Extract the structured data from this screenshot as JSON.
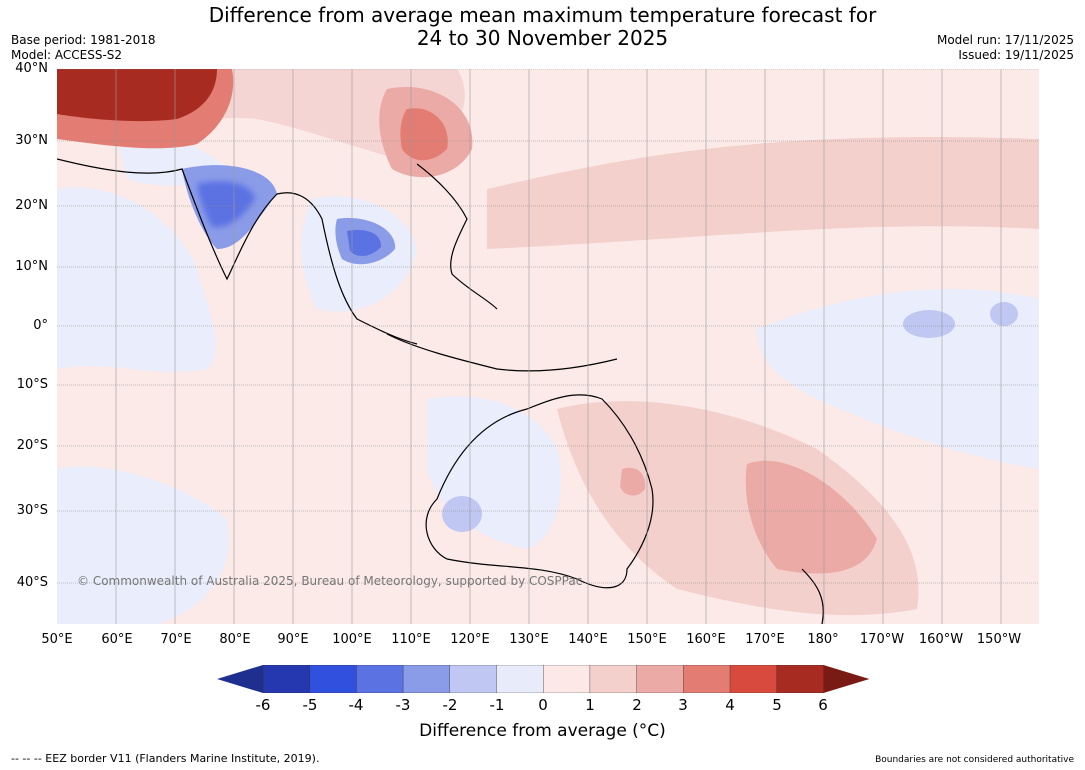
{
  "header": {
    "title_line1": "Difference from average mean maximum temperature forecast for",
    "title_line2": "24 to 30 November 2025",
    "base_period": "Base period: 1981-2018",
    "model": "Model: ACCESS-S2",
    "model_run": "Model run: 17/11/2025",
    "issued": "Issued: 19/11/2025"
  },
  "map": {
    "lat_labels": [
      "40°N",
      "30°N",
      "20°N",
      "10°N",
      "0°",
      "10°S",
      "20°S",
      "30°S",
      "40°S"
    ],
    "lon_labels": [
      "50°E",
      "60°E",
      "70°E",
      "80°E",
      "90°E",
      "100°E",
      "110°E",
      "120°E",
      "130°E",
      "140°E",
      "150°E",
      "160°E",
      "170°E",
      "180°",
      "170°W",
      "160°W",
      "150°W"
    ],
    "copyright": "© Commonwealth of Australia 2025, Bureau of Meteorology, supported by COSPPac"
  },
  "colorbar": {
    "ticks": [
      "-6",
      "-5",
      "-4",
      "-3",
      "-2",
      "-1",
      "0",
      "1",
      "2",
      "3",
      "4",
      "5",
      "6"
    ],
    "label": "Difference from average (°C)",
    "colors": [
      "#1f2f8f",
      "#2638b0",
      "#3150de",
      "#5b72e3",
      "#8a9be8",
      "#bfc7f2",
      "#e8ebfa",
      "#fce9e7",
      "#f4d0cd",
      "#ebaaa5",
      "#e37c73",
      "#d84a3d",
      "#a82b22",
      "#7a1a14"
    ]
  },
  "footer": {
    "eez": "--  --  -- EEZ border V11 (Flanders Marine Institute, 2019).",
    "disclaimer": "Boundaries are not considered authoritative"
  }
}
